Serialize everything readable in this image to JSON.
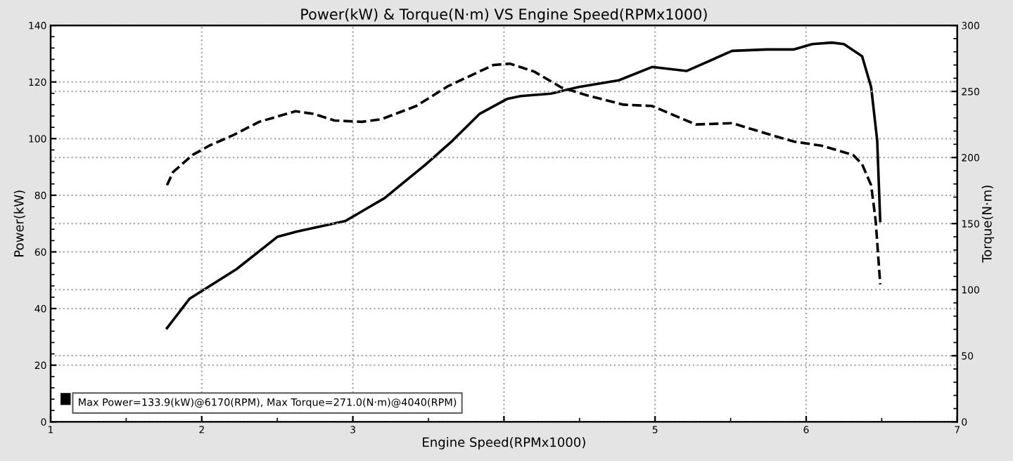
{
  "chart_data": {
    "type": "line",
    "title": "Power(kW) & Torque(N·m) VS Engine Speed(RPMx1000)",
    "xlabel": "Engine Speed(RPMx1000)",
    "ylabel": "Power(kW)",
    "y2label": "Torque(N·m)",
    "series": [
      {
        "color": "#000000",
        "line_style": "solid",
        "x": [
          1.77,
          1.92,
          2.23,
          2.5,
          2.63,
          2.95,
          3.21,
          3.48,
          3.66,
          3.84,
          4.02,
          4.11,
          4.31,
          4.49,
          4.76,
          4.98,
          5.21,
          5.51,
          5.74,
          5.92,
          6.04,
          6.17,
          6.25,
          6.37,
          6.43,
          6.47,
          6.49
        ],
        "values": [
          33.1,
          43.5,
          53.9,
          65.3,
          67.2,
          70.9,
          79.0,
          90.8,
          99.3,
          108.8,
          114,
          115,
          115.9,
          118.2,
          120.6,
          125.3,
          123.9,
          131,
          131.5,
          131.5,
          133.4,
          133.9,
          133.4,
          129.1,
          118.2,
          99.3,
          70.9
        ]
      },
      {
        "color": "#000000",
        "line_style": "dashed",
        "axis": "y2",
        "x": [
          1.77,
          1.81,
          1.94,
          2.05,
          2.21,
          2.38,
          2.62,
          2.74,
          2.88,
          3.06,
          3.19,
          3.42,
          3.63,
          3.93,
          4.04,
          4.2,
          4.38,
          4.55,
          4.79,
          4.98,
          5.27,
          5.51,
          5.74,
          5.92,
          6.1,
          6.31,
          6.37,
          6.43,
          6.46,
          6.49
        ],
        "values": [
          179,
          189,
          202,
          209,
          217,
          227,
          235,
          233,
          228,
          227,
          229,
          239,
          254,
          270,
          271,
          265,
          253,
          247,
          240,
          239,
          225,
          226,
          218,
          212,
          209,
          202,
          195,
          179,
          152,
          104
        ]
      }
    ],
    "xlim": [
      1,
      7
    ],
    "xticks": [
      1,
      2,
      3,
      {
        "value": 4,
        "label": null
      },
      5,
      6,
      7
    ],
    "ylim": [
      0,
      140
    ],
    "yticks": [
      0,
      20,
      40,
      60,
      80,
      100,
      120,
      140
    ],
    "y2lim": [
      0,
      300
    ],
    "y2ticks": [
      0,
      50,
      100,
      150,
      200,
      250,
      300
    ],
    "grid": true,
    "annotations": [
      "Max Power=133.9(kW)@6170(RPM), Max Torque=271.0(N·m)@4040(RPM)"
    ]
  }
}
